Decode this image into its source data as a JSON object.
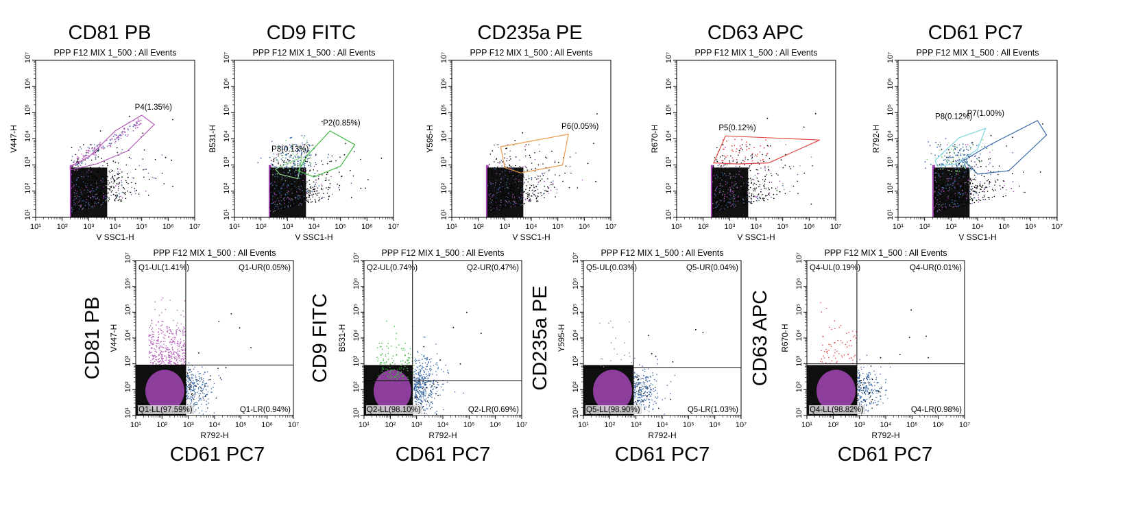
{
  "figure": {
    "top_headers": [
      "CD81 PB",
      "CD9 FITC",
      "CD235a PE",
      "CD63 APC",
      "CD61 PC7"
    ],
    "bottom_y_headers": [
      "CD81 PB",
      "CD9 FITC",
      "CD235a PE",
      "CD63 APC"
    ],
    "bottom_x_header": "CD61 PC7"
  },
  "chart_data": [
    {
      "type": "scatter",
      "id": "top1",
      "title": "PPP F12 MIX 1_500 : All Events",
      "xlabel": "V SSC1-H",
      "ylabel": "V447-H",
      "log_axes": true,
      "xlim": [
        10,
        10000000
      ],
      "ylim": [
        10,
        10000000
      ],
      "gates": [
        {
          "name": "P4(1.35%)",
          "percent": 1.35,
          "color": "#b25cb8",
          "polygon": [
            [
              200,
              900
            ],
            [
              1000,
              2000
            ],
            [
              10000,
              20000
            ],
            [
              100000,
              80000
            ],
            [
              300000,
              35000
            ],
            [
              30000,
              3500
            ],
            [
              2000,
              1100
            ],
            [
              200,
              650
            ]
          ]
        }
      ]
    },
    {
      "type": "scatter",
      "id": "top2",
      "title": "PPP F12 MIX 1_500 : All Events",
      "xlabel": "V SSC1-H",
      "ylabel": "B531-H",
      "log_axes": true,
      "xlim": [
        10,
        10000000
      ],
      "ylim": [
        10,
        10000000
      ],
      "gates": [
        {
          "name": "P2(0.85%)",
          "percent": 0.85,
          "color": "#3fb83f",
          "polygon": [
            [
              2500,
              600
            ],
            [
              6000,
              2500
            ],
            [
              40000,
              20000
            ],
            [
              350000,
              6000
            ],
            [
              100000,
              900
            ],
            [
              10000,
              350
            ]
          ]
        },
        {
          "name": "P3(0.13%)",
          "percent": 0.13,
          "color": "#8fd48f",
          "polygon": [
            [
              350,
              700
            ],
            [
              3500,
              2000
            ],
            [
              2500,
              300
            ],
            [
              500,
              450
            ]
          ]
        }
      ]
    },
    {
      "type": "scatter",
      "id": "top3",
      "title": "PPP F12 MIX 1_500 : All Events",
      "xlabel": "V SSC1-H",
      "ylabel": "Y595-H",
      "log_axes": true,
      "xlim": [
        10,
        10000000
      ],
      "ylim": [
        10,
        10000000
      ],
      "gates": [
        {
          "name": "P6(0.05%)",
          "percent": 0.05,
          "color": "#e89a4a",
          "polygon": [
            [
              700,
              5000
            ],
            [
              250000,
              15000
            ],
            [
              150000,
              1000
            ],
            [
              4000,
              500
            ],
            [
              1000,
              800
            ]
          ]
        }
      ]
    },
    {
      "type": "scatter",
      "id": "top4",
      "title": "PPP F12 MIX 1_500 : All Events",
      "xlabel": "V SSC1-H",
      "ylabel": "R670-H",
      "log_axes": true,
      "xlim": [
        10,
        10000000
      ],
      "ylim": [
        10,
        10000000
      ],
      "gates": [
        {
          "name": "P5(0.12%)",
          "percent": 0.12,
          "color": "#e04848",
          "polygon": [
            [
              250,
              1200
            ],
            [
              700,
              13000
            ],
            [
              2500000,
              9000
            ],
            [
              30000,
              1200
            ],
            [
              2000,
              1100
            ]
          ]
        }
      ]
    },
    {
      "type": "scatter",
      "id": "top5",
      "title": "PPP F12 MIX 1_500 : All Events",
      "xlabel": "V SSC1-H",
      "ylabel": "R792-H",
      "log_axes": true,
      "xlim": [
        10,
        10000000
      ],
      "ylim": [
        10,
        10000000
      ],
      "gates": [
        {
          "name": "P7(1.00%)",
          "percent": 1.0,
          "color": "#3a6aaa",
          "polygon": [
            [
              3000,
              1500
            ],
            [
              30000,
              6000
            ],
            [
              1800000,
              50000
            ],
            [
              4000000,
              14000
            ],
            [
              150000,
              600
            ],
            [
              10000,
              450
            ]
          ]
        },
        {
          "name": "P8(0.12%)",
          "percent": 0.12,
          "color": "#7ed6e0",
          "polygon": [
            [
              250,
              1500
            ],
            [
              2000,
              11000
            ],
            [
              20000,
              25000
            ],
            [
              10000,
              4000
            ],
            [
              1500,
              1100
            ],
            [
              300,
              900
            ]
          ]
        }
      ]
    },
    {
      "type": "scatter",
      "id": "bot1",
      "title": "PPP F12 MIX 1_500 : All Events",
      "xlabel": "R792-H",
      "ylabel": "V447-H",
      "log_axes": true,
      "xlim": [
        10,
        10000000
      ],
      "ylim": [
        10,
        10000000
      ],
      "quadrant_split": {
        "x": 800,
        "y": 900
      },
      "quadrants": {
        "UL": "Q1-UL(1.41%)",
        "UR": "Q1-UR(0.05%)",
        "LL": "Q1-LL(97.59%)",
        "LR": "Q1-LR(0.94%)"
      }
    },
    {
      "type": "scatter",
      "id": "bot2",
      "title": "PPP F12 MIX 1_500 : All Events",
      "xlabel": "R792-H",
      "ylabel": "B531-H",
      "log_axes": true,
      "xlim": [
        10,
        10000000
      ],
      "ylim": [
        10,
        10000000
      ],
      "quadrant_split": {
        "x": 700,
        "y": 220
      },
      "quadrants": {
        "UL": "Q2-UL(0.74%)",
        "UR": "Q2-UR(0.47%)",
        "LL": "Q2-LL(98.10%)",
        "LR": "Q2-LR(0.69%)"
      }
    },
    {
      "type": "scatter",
      "id": "bot3",
      "title": "PPP F12 MIX 1_500 : All Events",
      "xlabel": "R792-H",
      "ylabel": "Y595-H",
      "log_axes": true,
      "xlim": [
        10,
        10000000
      ],
      "ylim": [
        10,
        10000000
      ],
      "quadrant_split": {
        "x": 800,
        "y": 700
      },
      "quadrants": {
        "UL": "Q5-UL(0.03%)",
        "UR": "Q5-UR(0.04%)",
        "LL": "Q5-LL(98.90%)",
        "LR": "Q5-LR(1.03%)"
      }
    },
    {
      "type": "scatter",
      "id": "bot4",
      "title": "PPP F12 MIX 1_500 : All Events",
      "xlabel": "R792-H",
      "ylabel": "R670-H",
      "log_axes": true,
      "xlim": [
        10,
        10000000
      ],
      "ylim": [
        10,
        10000000
      ],
      "quadrant_split": {
        "x": 800,
        "y": 1000
      },
      "quadrants": {
        "UL": "Q4-UL(0.19%)",
        "UR": "Q4-UR(0.01%)",
        "LL": "Q4-LL(98.82%)",
        "LR": "Q4-LR(0.98%)"
      }
    }
  ]
}
